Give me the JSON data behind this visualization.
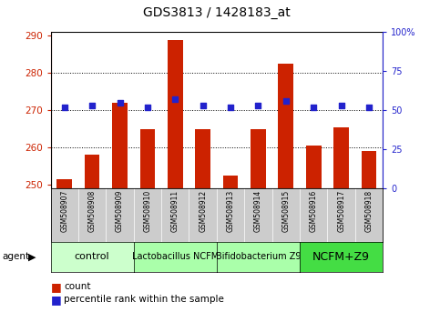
{
  "title": "GDS3813 / 1428183_at",
  "samples": [
    "GSM508907",
    "GSM508908",
    "GSM508909",
    "GSM508910",
    "GSM508911",
    "GSM508912",
    "GSM508913",
    "GSM508914",
    "GSM508915",
    "GSM508916",
    "GSM508917",
    "GSM508918"
  ],
  "bar_values": [
    251.5,
    258.0,
    272.0,
    265.0,
    289.0,
    265.0,
    252.5,
    265.0,
    282.5,
    260.5,
    265.5,
    259.0
  ],
  "blue_values": [
    52,
    53,
    55,
    52,
    57,
    53,
    52,
    53,
    56,
    52,
    53,
    52
  ],
  "ylim_left": [
    249,
    291
  ],
  "ylim_right": [
    0,
    100
  ],
  "yticks_left": [
    250,
    260,
    270,
    280,
    290
  ],
  "yticks_right": [
    0,
    25,
    50,
    75,
    100
  ],
  "bar_color": "#cc2200",
  "blue_color": "#2222cc",
  "bar_bottom": 249,
  "groups": [
    {
      "label": "control",
      "start": 0,
      "end": 3,
      "color": "#ccffcc",
      "fontsize": 8
    },
    {
      "label": "Lactobacillus NCFM",
      "start": 3,
      "end": 6,
      "color": "#aaffaa",
      "fontsize": 7
    },
    {
      "label": "Bifidobacterium Z9",
      "start": 6,
      "end": 9,
      "color": "#aaffaa",
      "fontsize": 7
    },
    {
      "label": "NCFM+Z9",
      "start": 9,
      "end": 12,
      "color": "#44dd44",
      "fontsize": 9
    }
  ],
  "agent_label": "agent",
  "legend_count_label": "count",
  "legend_pct_label": "percentile rank within the sample",
  "tick_color_left": "#cc2200",
  "tick_color_right": "#2222cc",
  "grid_yticks": [
    260,
    270,
    280
  ]
}
